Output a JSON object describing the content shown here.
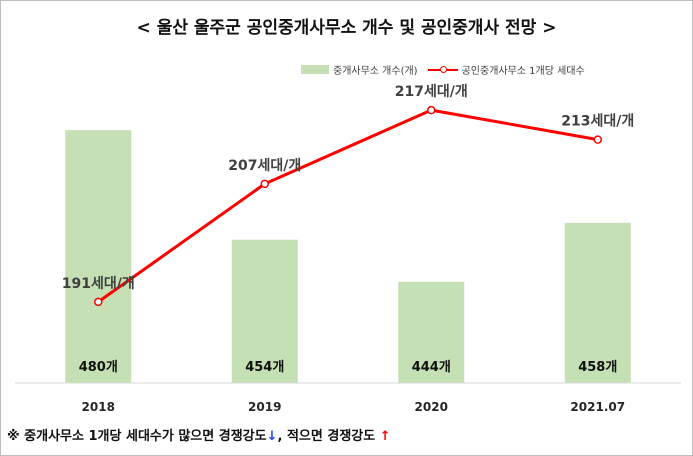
{
  "title": "< 울산 울주군 공인중개사무소 개수 및 공인중개사 전망 >",
  "legend": {
    "bar_label": "중개사무소 개수(개)",
    "line_label": "공인중개사무소 1개당 세대수"
  },
  "footnote": {
    "prefix": "※ 중개사무소 1개당 세대수가 많으면 경쟁강도",
    "down_arrow": "↓",
    "middle": ", 적으면 경쟁강도 ",
    "up_arrow": "↑"
  },
  "colors": {
    "bar": "#c5e0b4",
    "line": "#ff0000",
    "axis": "#d9d9d9"
  },
  "chart_data": {
    "type": "bar",
    "categories": [
      "2018",
      "2019",
      "2020",
      "2021.07"
    ],
    "series": [
      {
        "name": "중개사무소 개수(개)",
        "type": "bar",
        "values": [
          480,
          454,
          444,
          458
        ],
        "labels": [
          "480개",
          "454개",
          "444개",
          "458개"
        ]
      },
      {
        "name": "공인중개사무소 1개당 세대수",
        "type": "line",
        "values": [
          191,
          207,
          217,
          213
        ],
        "labels": [
          "191세대/개",
          "207세대/개",
          "217세대/개",
          "213세대/개"
        ]
      }
    ],
    "bar_axis_range": [
      420,
      490
    ],
    "line_axis_range": [
      180,
      220
    ],
    "grid": false,
    "legend_position": "top-right"
  }
}
